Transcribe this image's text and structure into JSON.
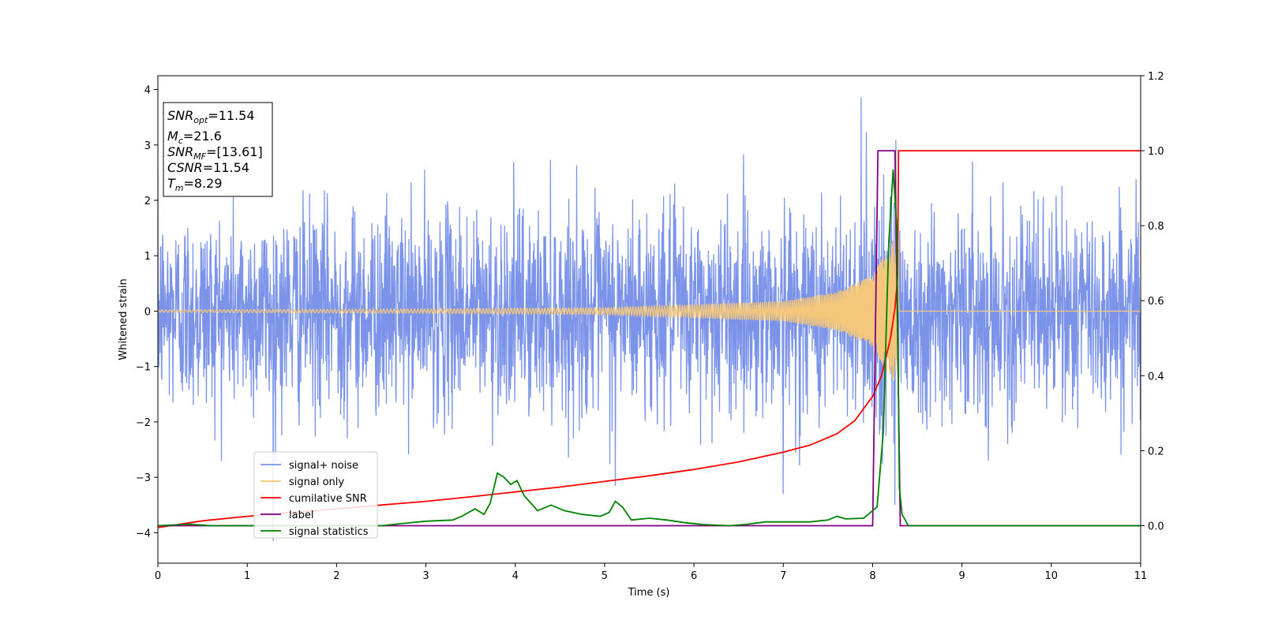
{
  "chart_data": {
    "type": "line",
    "xlabel": "Time (s)",
    "ylabel_left": "Whitened strain",
    "ylabel_right": "",
    "xlim": [
      0,
      11
    ],
    "ylim_left": [
      -4.55,
      4.25
    ],
    "ylim_right": [
      -0.1,
      1.2
    ],
    "x_ticks": [
      "0",
      "1",
      "2",
      "3",
      "4",
      "5",
      "6",
      "7",
      "8",
      "9",
      "10",
      "11"
    ],
    "y_left_ticks": [
      "4",
      "3",
      "2",
      "1",
      "0",
      "−1",
      "−2",
      "−3",
      "−4"
    ],
    "y_right_ticks": [
      "1.2",
      "1.0",
      "0.8",
      "0.6",
      "0.4",
      "0.2",
      "0.0"
    ],
    "grid": false,
    "legend_position": "lower-left",
    "info_box": {
      "snr_opt": "=11.54",
      "mc": "=21.6",
      "snr_mf": "=[13.61]",
      "csnr": "=11.54",
      "tm": "=8.29"
    },
    "series": [
      {
        "name": "signal+ noise",
        "axis": "left",
        "color": "#7b93e8",
        "description_values": {
          "noise_std": 1.0,
          "typical_peak": 2.6,
          "max": {
            "x": 7.87,
            "y": 3.86
          },
          "min": {
            "x": 1.29,
            "y": -4.15
          },
          "notable_peaks": [
            {
              "x": 7.87,
              "y": 3.86
            },
            {
              "x": 7.93,
              "y": 3.23
            },
            {
              "x": 8.26,
              "y": 3.09
            },
            {
              "x": 5.12,
              "y": 3.05
            },
            {
              "x": 8.25,
              "y": -3.5
            },
            {
              "x": 5.12,
              "y": -3.15
            },
            {
              "x": 7.0,
              "y": -3.3
            }
          ]
        }
      },
      {
        "name": "signal only",
        "axis": "left",
        "color": "#f5c77a",
        "description_values": {
          "merger_time": 8.29,
          "amplitude_points": [
            [
              0,
              0.02
            ],
            [
              3,
              0.04
            ],
            [
              5,
              0.06
            ],
            [
              7,
              0.18
            ],
            [
              7.6,
              0.35
            ],
            [
              8.0,
              0.65
            ],
            [
              8.2,
              1.2
            ],
            [
              8.28,
              1.5
            ]
          ]
        }
      },
      {
        "name": "cumilative SNR",
        "axis": "right",
        "color": "#ff0000",
        "values": [
          [
            0,
            -0.005
          ],
          [
            0.5,
            0.013
          ],
          [
            1,
            0.025
          ],
          [
            1.5,
            0.035
          ],
          [
            2,
            0.045
          ],
          [
            2.5,
            0.055
          ],
          [
            3,
            0.065
          ],
          [
            3.5,
            0.077
          ],
          [
            4,
            0.09
          ],
          [
            4.5,
            0.103
          ],
          [
            5,
            0.118
          ],
          [
            5.5,
            0.133
          ],
          [
            6,
            0.15
          ],
          [
            6.5,
            0.17
          ],
          [
            7,
            0.196
          ],
          [
            7.3,
            0.215
          ],
          [
            7.6,
            0.245
          ],
          [
            7.8,
            0.28
          ],
          [
            8.0,
            0.345
          ],
          [
            8.1,
            0.4
          ],
          [
            8.2,
            0.5
          ],
          [
            8.25,
            0.58
          ],
          [
            8.28,
            0.66
          ],
          [
            8.29,
            1.0
          ],
          [
            11,
            1.0
          ]
        ]
      },
      {
        "name": "label",
        "axis": "right",
        "color": "#800080",
        "values": [
          [
            0,
            0.0
          ],
          [
            8.0,
            0.0
          ],
          [
            8.06,
            1.0
          ],
          [
            8.25,
            1.0
          ],
          [
            8.31,
            0.0
          ],
          [
            11,
            0.0
          ]
        ]
      },
      {
        "name": "signal statistics",
        "axis": "right",
        "color": "#008000",
        "values": [
          [
            0,
            0.0
          ],
          [
            0.35,
            0.004
          ],
          [
            0.6,
            0.0
          ],
          [
            1.5,
            0.0
          ],
          [
            2.5,
            0.0
          ],
          [
            2.7,
            0.005
          ],
          [
            3.0,
            0.012
          ],
          [
            3.3,
            0.015
          ],
          [
            3.4,
            0.025
          ],
          [
            3.55,
            0.045
          ],
          [
            3.65,
            0.03
          ],
          [
            3.72,
            0.06
          ],
          [
            3.8,
            0.14
          ],
          [
            3.87,
            0.13
          ],
          [
            3.95,
            0.11
          ],
          [
            4.02,
            0.12
          ],
          [
            4.1,
            0.08
          ],
          [
            4.25,
            0.04
          ],
          [
            4.4,
            0.055
          ],
          [
            4.55,
            0.04
          ],
          [
            4.75,
            0.03
          ],
          [
            4.95,
            0.025
          ],
          [
            5.05,
            0.035
          ],
          [
            5.12,
            0.065
          ],
          [
            5.2,
            0.05
          ],
          [
            5.3,
            0.015
          ],
          [
            5.5,
            0.02
          ],
          [
            5.7,
            0.015
          ],
          [
            5.9,
            0.008
          ],
          [
            6.1,
            0.003
          ],
          [
            6.4,
            0.0
          ],
          [
            6.6,
            0.004
          ],
          [
            6.8,
            0.01
          ],
          [
            7.0,
            0.01
          ],
          [
            7.3,
            0.01
          ],
          [
            7.5,
            0.015
          ],
          [
            7.6,
            0.025
          ],
          [
            7.7,
            0.018
          ],
          [
            7.9,
            0.02
          ],
          [
            7.95,
            0.03
          ],
          [
            8.05,
            0.05
          ],
          [
            8.12,
            0.25
          ],
          [
            8.18,
            0.75
          ],
          [
            8.23,
            0.95
          ],
          [
            8.27,
            0.8
          ],
          [
            8.3,
            0.1
          ],
          [
            8.33,
            0.03
          ],
          [
            8.4,
            0.0
          ],
          [
            11,
            0.0
          ]
        ]
      }
    ]
  }
}
